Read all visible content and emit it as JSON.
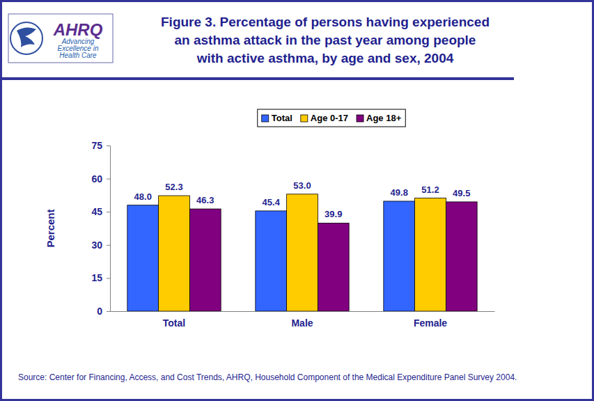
{
  "chart_data": {
    "type": "bar",
    "title": [
      "Figure 3. Percentage of persons having experienced",
      "an asthma attack in the past year among people",
      "with active asthma, by age and sex, 2004"
    ],
    "logo_text": "AHRQ",
    "logo_tagline": [
      "Advancing",
      "Excellence in",
      "Health Care"
    ],
    "ylabel": "Percent",
    "source": "Source: Center for Financing, Access, and Cost Trends, AHRQ, Household Component of the Medical Expenditure Panel Survey 2004.",
    "categories": [
      "Total",
      "Male",
      "Female"
    ],
    "series": [
      {
        "name": "Total",
        "color": "#3366FF",
        "values": [
          48.0,
          45.4,
          49.8
        ],
        "value_labels": [
          "48.0",
          "45.4",
          "49.8"
        ]
      },
      {
        "name": "Age 0-17",
        "color": "#FFCC00",
        "values": [
          52.3,
          53.0,
          51.2
        ],
        "value_labels": [
          "52.3",
          "53.0",
          "51.2"
        ]
      },
      {
        "name": "Age 18+",
        "color": "#800080",
        "values": [
          46.3,
          39.9,
          49.5
        ],
        "value_labels": [
          "46.3",
          "39.9",
          "49.5"
        ]
      }
    ],
    "ylim": [
      0,
      75
    ],
    "yticks": [
      0,
      15,
      30,
      45,
      60,
      75
    ],
    "grid": false,
    "legend": "top",
    "data_labels": true
  }
}
